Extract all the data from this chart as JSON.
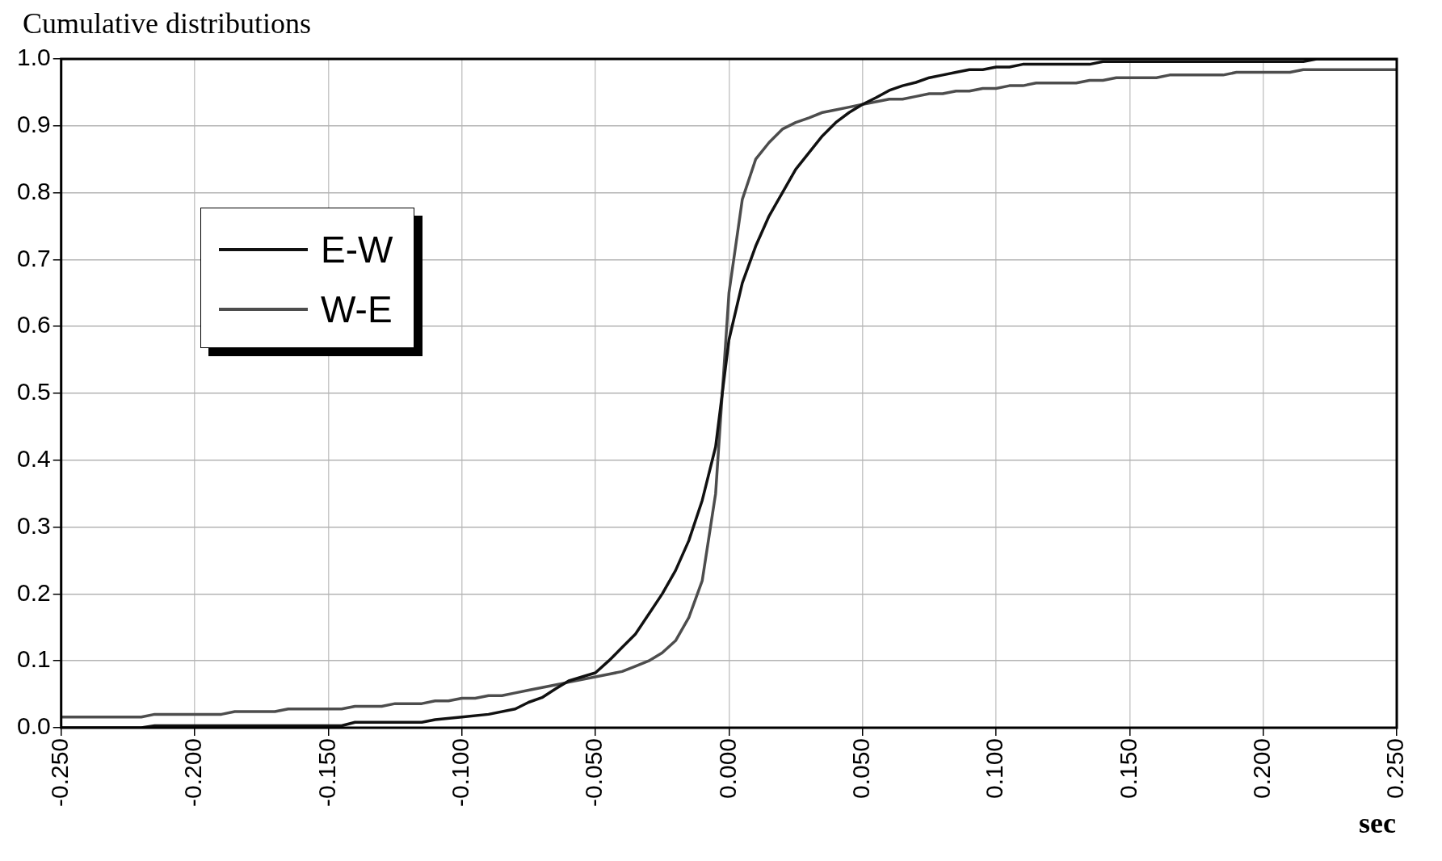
{
  "chart_data": {
    "type": "line",
    "title": "Cumulative distributions",
    "xlabel": "sec",
    "xlim": [
      -0.25,
      0.25
    ],
    "xticks": [
      {
        "value": -0.25,
        "label": "-0.250"
      },
      {
        "value": -0.2,
        "label": "-0.200"
      },
      {
        "value": -0.15,
        "label": "-0.150"
      },
      {
        "value": -0.1,
        "label": "-0.100"
      },
      {
        "value": -0.05,
        "label": "-0.050"
      },
      {
        "value": 0,
        "label": "0.000"
      },
      {
        "value": 0.05,
        "label": "0.050"
      },
      {
        "value": 0.1,
        "label": "0.100"
      },
      {
        "value": 0.15,
        "label": "0.150"
      },
      {
        "value": 0.2,
        "label": "0.200"
      },
      {
        "value": 0.25,
        "label": "0.250"
      }
    ],
    "ylim": [
      0,
      1
    ],
    "yticks": [
      {
        "value": 0,
        "label": "0.0"
      },
      {
        "value": 0.1,
        "label": "0.1"
      },
      {
        "value": 0.2,
        "label": "0.2"
      },
      {
        "value": 0.3,
        "label": "0.3"
      },
      {
        "value": 0.4,
        "label": "0.4"
      },
      {
        "value": 0.5,
        "label": "0.5"
      },
      {
        "value": 0.6,
        "label": "0.6"
      },
      {
        "value": 0.7,
        "label": "0.7"
      },
      {
        "value": 0.8,
        "label": "0.8"
      },
      {
        "value": 0.9,
        "label": "0.9"
      },
      {
        "value": 1,
        "label": "1.0"
      }
    ],
    "grid": true,
    "legend": "top left",
    "marker": "none",
    "line_style": "solid",
    "series": [
      {
        "name": "E-W",
        "color": "#111111",
        "x": [
          -0.25,
          -0.22,
          -0.215,
          -0.145,
          -0.14,
          -0.115,
          -0.11,
          -0.1,
          -0.09,
          -0.08,
          -0.075,
          -0.07,
          -0.065,
          -0.06,
          -0.05,
          -0.045,
          -0.04,
          -0.035,
          -0.03,
          -0.025,
          -0.02,
          -0.015,
          -0.01,
          -0.005,
          0,
          0.005,
          0.01,
          0.015,
          0.02,
          0.025,
          0.03,
          0.035,
          0.04,
          0.045,
          0.05,
          0.055,
          0.06,
          0.065,
          0.07,
          0.075,
          0.08,
          0.085,
          0.09,
          0.095,
          0.1,
          0.105,
          0.11,
          0.135,
          0.14,
          0.215,
          0.22,
          0.25
        ],
        "values": [
          0,
          0,
          0.003,
          0.003,
          0.008,
          0.008,
          0.012,
          0.016,
          0.02,
          0.028,
          0.038,
          0.045,
          0.058,
          0.07,
          0.082,
          0.1,
          0.12,
          0.14,
          0.17,
          0.2,
          0.235,
          0.28,
          0.34,
          0.42,
          0.58,
          0.665,
          0.72,
          0.765,
          0.8,
          0.835,
          0.86,
          0.885,
          0.905,
          0.92,
          0.932,
          0.942,
          0.953,
          0.96,
          0.965,
          0.972,
          0.976,
          0.98,
          0.984,
          0.984,
          0.988,
          0.988,
          0.992,
          0.992,
          0.996,
          0.996,
          1,
          1
        ]
      },
      {
        "name": "W-E",
        "color": "#4d4d4d",
        "x": [
          -0.25,
          -0.22,
          -0.215,
          -0.19,
          -0.185,
          -0.17,
          -0.165,
          -0.145,
          -0.14,
          -0.13,
          -0.125,
          -0.115,
          -0.11,
          -0.105,
          -0.1,
          -0.095,
          -0.09,
          -0.085,
          -0.08,
          -0.075,
          -0.07,
          -0.065,
          -0.06,
          -0.055,
          -0.05,
          -0.045,
          -0.04,
          -0.035,
          -0.03,
          -0.025,
          -0.02,
          -0.015,
          -0.01,
          -0.005,
          0,
          0.005,
          0.01,
          0.015,
          0.02,
          0.025,
          0.03,
          0.035,
          0.04,
          0.045,
          0.05,
          0.055,
          0.06,
          0.065,
          0.07,
          0.075,
          0.08,
          0.085,
          0.09,
          0.095,
          0.1,
          0.105,
          0.11,
          0.115,
          0.13,
          0.135,
          0.14,
          0.145,
          0.16,
          0.165,
          0.185,
          0.19,
          0.21,
          0.215,
          0.25
        ],
        "values": [
          0.016,
          0.016,
          0.02,
          0.02,
          0.024,
          0.024,
          0.028,
          0.028,
          0.032,
          0.032,
          0.036,
          0.036,
          0.04,
          0.04,
          0.044,
          0.044,
          0.048,
          0.048,
          0.052,
          0.056,
          0.06,
          0.064,
          0.068,
          0.072,
          0.076,
          0.08,
          0.084,
          0.092,
          0.1,
          0.112,
          0.13,
          0.165,
          0.22,
          0.35,
          0.65,
          0.79,
          0.85,
          0.875,
          0.895,
          0.905,
          0.912,
          0.92,
          0.924,
          0.928,
          0.932,
          0.936,
          0.94,
          0.94,
          0.944,
          0.948,
          0.948,
          0.952,
          0.952,
          0.956,
          0.956,
          0.96,
          0.96,
          0.964,
          0.964,
          0.968,
          0.968,
          0.972,
          0.972,
          0.976,
          0.976,
          0.98,
          0.98,
          0.984,
          0.984
        ]
      }
    ]
  }
}
